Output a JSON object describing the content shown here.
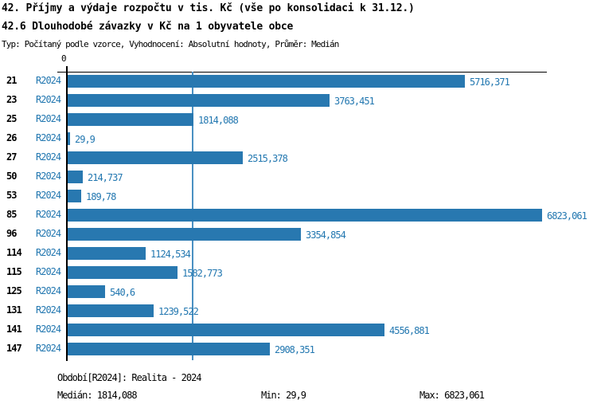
{
  "page": {
    "title": "42. Příjmy a výdaje rozpočtu v tis. Kč (vše po konsolidaci k 31.12.)",
    "subtitle": "42.6 Dlouhodobé závazky v Kč na 1 obyvatele obce",
    "meta": "Typ: Počítaný podle vzorce, Vyhodnocení: Absolutní hodnoty, Průměr: Medián"
  },
  "chart_data": {
    "type": "bar",
    "orientation": "horizontal",
    "series_name": "R2024",
    "categories": [
      "21",
      "23",
      "25",
      "26",
      "27",
      "50",
      "53",
      "85",
      "96",
      "114",
      "115",
      "125",
      "131",
      "141",
      "147"
    ],
    "values": [
      5716.371,
      3763.451,
      1814.088,
      29.9,
      2515.378,
      214.737,
      189.78,
      6823.061,
      3354.854,
      1124.534,
      1582.773,
      540.6,
      1239.522,
      4556.881,
      2908.351
    ],
    "value_labels": [
      "5716,371",
      "3763,451",
      "1814,088",
      "29,9",
      "2515,378",
      "214,737",
      "189,78",
      "6823,061",
      "3354,854",
      "1124,534",
      "1582,773",
      "540,6",
      "1239,522",
      "4556,881",
      "2908,351"
    ],
    "axis_zero_label": "0",
    "xlim": [
      0,
      6900
    ],
    "median_value": 1814.088,
    "has_median_line": true,
    "legend": "none",
    "grid": "off"
  },
  "colors": {
    "bar": "#2878b0",
    "accent_text": "#2277b0",
    "median_line": "#4a90c2",
    "axis": "#000000"
  },
  "footer": {
    "period": "Období[R2024]: Realita - 2024",
    "median": "Medián: 1814,088",
    "min": "Min: 29,9",
    "max": "Max: 6823,061"
  }
}
